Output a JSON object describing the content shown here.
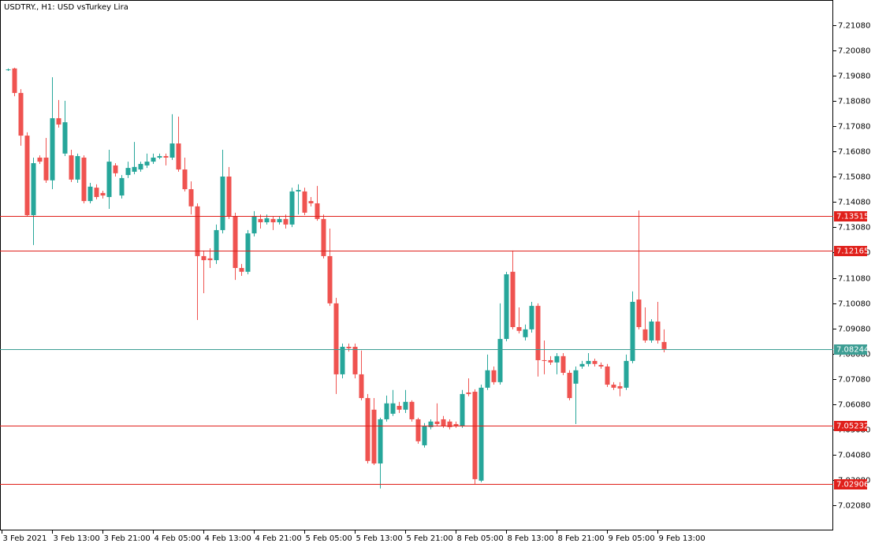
{
  "chart_data": {
    "type": "candlestick",
    "title": "USDTRY., H1:  USD vsTurkey Lira",
    "up_color": "#26a69a",
    "down_color": "#ef5350",
    "open": [
      7.193,
      7.1937,
      7.184,
      7.1671,
      7.1356,
      7.1584,
      7.1584,
      7.1494,
      7.174,
      7.16,
      7.1593,
      7.1497,
      7.1584,
      7.1412,
      7.1465,
      7.1444,
      7.1428,
      7.1553,
      7.1434,
      7.1515,
      7.1528,
      7.1537,
      7.1553,
      7.1568,
      7.1584,
      7.159,
      7.1584,
      7.164,
      7.1537,
      7.1459,
      7.1391,
      7.1194,
      7.1185,
      7.1178,
      7.1297,
      7.1509,
      7.135,
      7.1147,
      7.1132,
      7.1284,
      7.1341,
      7.1328,
      7.1341,
      7.1328,
      7.1341,
      7.1319,
      7.145,
      7.145,
      7.1412,
      7.1403,
      7.1341,
      7.1194,
      7.1007,
      7.0726,
      7.0835,
      7.0835,
      7.0726,
      7.0632,
      7.0586,
      7.0373,
      7.0548,
      7.057,
      7.0601,
      7.0586,
      7.0617,
      7.0548,
      7.0445,
      7.0517,
      7.0539,
      7.0548,
      7.0539,
      7.0529,
      7.0523,
      7.0654,
      7.0657,
      7.0305,
      7.0673,
      7.0742,
      7.0695,
      7.0866,
      7.1132,
      7.0913,
      7.0873,
      7.0904,
      7.0997,
      7.0782,
      7.0782,
      7.0773,
      7.0798,
      7.0732,
      7.0689,
      7.0757,
      7.0767,
      7.0779,
      7.0763,
      7.0757,
      7.0685,
      7.0679,
      7.0673,
      7.0779,
      7.1022,
      7.0904,
      7.086,
      7.0935,
      7.0854
    ],
    "high": [
      7.1937,
      7.194,
      7.1855,
      7.1684,
      7.1584,
      7.1593,
      7.1662,
      7.1902,
      7.1812,
      7.1809,
      7.1615,
      7.16,
      7.1593,
      7.1484,
      7.1478,
      7.1453,
      7.1615,
      7.1562,
      7.1515,
      7.1568,
      7.1646,
      7.1568,
      7.16,
      7.16,
      7.16,
      7.16,
      7.1756,
      7.1746,
      7.1584,
      7.149,
      7.1403,
      7.1216,
      7.1225,
      7.1319,
      7.1615,
      7.1547,
      7.1366,
      7.1163,
      7.1297,
      7.1372,
      7.1359,
      7.1359,
      7.135,
      7.135,
      7.1359,
      7.1465,
      7.1478,
      7.1465,
      7.1428,
      7.1472,
      7.1359,
      7.1303,
      7.1029,
      7.0848,
      7.0848,
      7.0848,
      7.082,
      7.0648,
      7.0632,
      7.0554,
      7.0642,
      7.0664,
      7.0617,
      7.0664,
      7.0623,
      7.0554,
      7.0533,
      7.0548,
      7.0611,
      7.0561,
      7.0548,
      7.0539,
      7.0664,
      7.071,
      7.0667,
      7.0685,
      7.0804,
      7.0757,
      7.1007,
      7.1132,
      7.1216,
      7.0991,
      7.0923,
      7.1013,
      7.1007,
      7.086,
      7.0798,
      7.081,
      7.081,
      7.0742,
      7.0757,
      7.0779,
      7.081,
      7.0788,
      7.0773,
      7.0767,
      7.0695,
      7.0695,
      7.0804,
      7.1054,
      7.1375,
      7.0991,
      7.0944,
      7.1013,
      7.0904
    ],
    "low": [
      7.1927,
      7.1827,
      7.1631,
      7.135,
      7.1238,
      7.1559,
      7.1484,
      7.1459,
      7.1703,
      7.159,
      7.1487,
      7.1484,
      7.1403,
      7.1403,
      7.1419,
      7.1422,
      7.1381,
      7.1509,
      7.1422,
      7.1503,
      7.1518,
      7.1528,
      7.1543,
      7.1559,
      7.1578,
      7.1553,
      7.1575,
      7.1528,
      7.145,
      7.1359,
      7.0941,
      7.1047,
      7.1147,
      7.1163,
      7.1284,
      7.1341,
      7.11,
      7.1116,
      7.1122,
      7.1272,
      7.1303,
      7.1319,
      7.1297,
      7.1319,
      7.1303,
      7.1309,
      7.1359,
      7.1356,
      7.1391,
      7.1334,
      7.1185,
      7.0997,
      7.0648,
      7.071,
      7.0816,
      7.071,
      7.0623,
      7.0373,
      7.0367,
      7.0274,
      7.0539,
      7.0561,
      7.0573,
      7.0573,
      7.0539,
      7.0451,
      7.0436,
      7.0508,
      7.052,
      7.0514,
      7.0508,
      7.0514,
      7.0514,
      7.0639,
      7.0289,
      7.0299,
      7.0664,
      7.0685,
      7.0685,
      7.0857,
      7.0904,
      7.0888,
      7.086,
      7.0891,
      7.0717,
      7.0726,
      7.0763,
      7.0726,
      7.0723,
      7.0623,
      7.0529,
      7.0748,
      7.0757,
      7.0757,
      7.0748,
      7.0676,
      7.0664,
      7.0639,
      7.0664,
      7.077,
      7.0904,
      7.0851,
      7.0851,
      7.0848,
      7.0813
    ],
    "close": [
      7.1933,
      7.184,
      7.1671,
      7.1356,
      7.1562,
      7.1568,
      7.1494,
      7.174,
      7.1715,
      7.1724,
      7.1497,
      7.159,
      7.1412,
      7.1469,
      7.1428,
      7.1434,
      7.1568,
      7.1522,
      7.1503,
      7.1543,
      7.1547,
      7.1559,
      7.1568,
      7.1584,
      7.159,
      7.1584,
      7.164,
      7.1537,
      7.1459,
      7.1391,
      7.1194,
      7.1178,
      7.1178,
      7.1297,
      7.1509,
      7.135,
      7.1147,
      7.1132,
      7.1284,
      7.1353,
      7.1328,
      7.1344,
      7.1328,
      7.1341,
      7.1319,
      7.145,
      7.1456,
      7.1366,
      7.1403,
      7.1341,
      7.1194,
      7.1007,
      7.0726,
      7.0835,
      7.0829,
      7.0726,
      7.0632,
      7.0383,
      7.0373,
      7.0548,
      7.0611,
      7.0611,
      7.0586,
      7.0617,
      7.0548,
      7.0461,
      7.0523,
      7.0539,
      7.0529,
      7.0523,
      7.0517,
      7.0523,
      7.0648,
      7.0648,
      7.0311,
      7.0673,
      7.0742,
      7.0695,
      7.0866,
      7.1122,
      7.0913,
      7.0898,
      7.0904,
      7.0997,
      7.0782,
      7.0779,
      7.0773,
      7.0798,
      7.0732,
      7.0632,
      7.0742,
      7.0767,
      7.0779,
      7.0767,
      7.0757,
      7.0685,
      7.0673,
      7.067,
      7.0779,
      7.1013,
      7.0913,
      7.086,
      7.0935,
      7.086,
      7.0826
    ],
    "xlim": [
      -0.25,
      131.875
    ],
    "xticks": [
      {
        "value": 0,
        "label": "3 Feb 2021"
      },
      {
        "value": 8,
        "label": "3 Feb 13:00"
      },
      {
        "value": 16,
        "label": "3 Feb 21:00"
      },
      {
        "value": 24,
        "label": "4 Feb 05:00"
      },
      {
        "value": 32,
        "label": "4 Feb 13:00"
      },
      {
        "value": 40,
        "label": "4 Feb 21:00"
      },
      {
        "value": 48,
        "label": "5 Feb 05:00"
      },
      {
        "value": 56,
        "label": "5 Feb 13:00"
      },
      {
        "value": 64,
        "label": "5 Feb 21:00"
      },
      {
        "value": 72,
        "label": "8 Feb 05:00"
      },
      {
        "value": 80,
        "label": "8 Feb 13:00"
      },
      {
        "value": 88,
        "label": "8 Feb 21:00"
      },
      {
        "value": 96,
        "label": "9 Feb 05:00"
      },
      {
        "value": 104,
        "label": "9 Feb 13:00"
      }
    ],
    "ylim": [
      7.0111,
      7.2208
    ],
    "yticks": [
      {
        "value": 7.2108,
        "label": "7.21080"
      },
      {
        "value": 7.2008,
        "label": "7.20080"
      },
      {
        "value": 7.1908,
        "label": "7.19080"
      },
      {
        "value": 7.1808,
        "label": "7.18080"
      },
      {
        "value": 7.1708,
        "label": "7.17080"
      },
      {
        "value": 7.1608,
        "label": "7.16080"
      },
      {
        "value": 7.1508,
        "label": "7.15080"
      },
      {
        "value": 7.1408,
        "label": "7.14080"
      },
      {
        "value": 7.1308,
        "label": "7.13080"
      },
      {
        "value": 7.1208,
        "label": "7.12080"
      },
      {
        "value": 7.1108,
        "label": "7.11080"
      },
      {
        "value": 7.1008,
        "label": "7.10080"
      },
      {
        "value": 7.0908,
        "label": "7.09080"
      },
      {
        "value": 7.0808,
        "label": "7.08080"
      },
      {
        "value": 7.0708,
        "label": "7.07080"
      },
      {
        "value": 7.0608,
        "label": "7.06080"
      },
      {
        "value": 7.0508,
        "label": "7.05080"
      },
      {
        "value": 7.0408,
        "label": "7.04080"
      },
      {
        "value": 7.0308,
        "label": "7.03080"
      },
      {
        "value": 7.0208,
        "label": "7.02080"
      }
    ],
    "levels": [
      {
        "value": 7.13515,
        "color": "#e0201b"
      },
      {
        "value": 7.12165,
        "color": "#e0201b"
      },
      {
        "value": 7.08244,
        "color": "#3d9e94"
      },
      {
        "value": 7.05232,
        "color": "#e0201b"
      },
      {
        "value": 7.02906,
        "color": "#e0201b"
      }
    ]
  }
}
